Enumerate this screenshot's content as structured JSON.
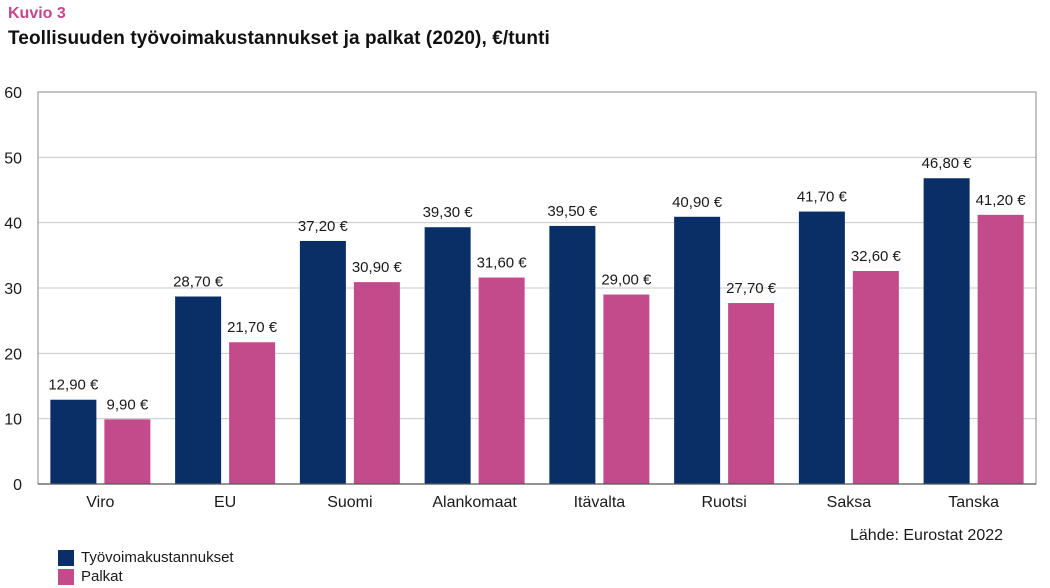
{
  "header": {
    "kicker": "Kuvio 3",
    "title": "Teollisuuden työvoimakustannukset ja palkat (2020), €/tunti"
  },
  "colors": {
    "kicker": "#c5468b",
    "series1": "#0a2f66",
    "series2": "#c44b8b",
    "grid": "#c8c8c8",
    "frame": "#8a8a8a"
  },
  "source": "Lähde: Eurostat 2022",
  "chart_data": {
    "type": "bar",
    "title": "Teollisuuden työvoimakustannukset ja palkat (2020), €/tunti",
    "xlabel": "",
    "ylabel": "",
    "ylim": [
      0,
      60
    ],
    "yticks": [
      0,
      10,
      20,
      30,
      40,
      50,
      60
    ],
    "grid": true,
    "legend_position": "bottom-left",
    "categories": [
      "Viro",
      "EU",
      "Suomi",
      "Alankomaat",
      "Itävalta",
      "Ruotsi",
      "Saksa",
      "Tanska"
    ],
    "series": [
      {
        "name": "Työvoimakustannukset",
        "color": "#0a2f66",
        "values": [
          12.9,
          28.7,
          37.2,
          39.3,
          39.5,
          40.9,
          41.7,
          46.8
        ],
        "labels": [
          "12,90 €",
          "28,70 €",
          "37,20 €",
          "39,30 €",
          "39,50 €",
          "40,90 €",
          "41,70 €",
          "46,80 €"
        ]
      },
      {
        "name": "Palkat",
        "color": "#c44b8b",
        "values": [
          9.9,
          21.7,
          30.9,
          31.6,
          29.0,
          27.7,
          32.6,
          41.2
        ],
        "labels": [
          "9,90 €",
          "21,70 €",
          "30,90 €",
          "31,60 €",
          "29,00 €",
          "27,70 €",
          "32,60 €",
          "41,20 €"
        ]
      }
    ]
  }
}
